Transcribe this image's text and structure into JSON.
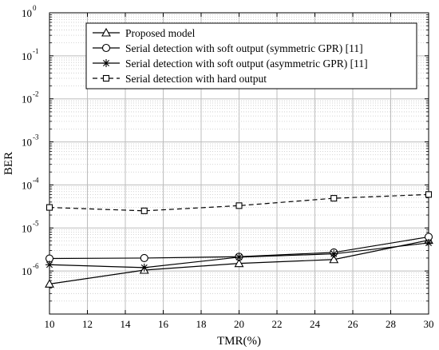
{
  "chart_data": {
    "type": "line",
    "xlabel": "TMR(%)",
    "ylabel": "BER",
    "xlim": [
      10,
      30
    ],
    "ylim": [
      1e-07,
      1
    ],
    "yscale": "log",
    "x_ticks": [
      10,
      12,
      14,
      16,
      18,
      20,
      22,
      24,
      26,
      28,
      30
    ],
    "x_tick_labels": [
      "10",
      "12",
      "14",
      "16",
      "18",
      "20",
      "22",
      "24",
      "26",
      "28",
      "30"
    ],
    "y_tick_exponents": [
      -6,
      -5,
      -4,
      -3,
      -2,
      -1,
      0
    ],
    "y_tick_base": "10",
    "grid": true,
    "legend_position": "top-right",
    "series": [
      {
        "name": "Proposed model",
        "marker": "triangle",
        "line": "solid",
        "x": [
          10,
          15,
          20,
          25,
          30
        ],
        "y": [
          5e-07,
          1.05e-06,
          1.5e-06,
          1.85e-06,
          5.2e-06
        ]
      },
      {
        "name": "Serial detection with soft output (symmetric GPR) [11]",
        "marker": "circle",
        "line": "solid",
        "x": [
          10,
          15,
          20,
          25,
          30
        ],
        "y": [
          1.95e-06,
          2e-06,
          2.15e-06,
          2.7e-06,
          6.2e-06
        ]
      },
      {
        "name": "Serial detection with soft output (asymmetric GPR) [11]",
        "marker": "asterisk",
        "line": "solid",
        "x": [
          10,
          15,
          20,
          25,
          30
        ],
        "y": [
          1.4e-06,
          1.2e-06,
          2.1e-06,
          2.5e-06,
          4.5e-06
        ]
      },
      {
        "name": "Serial detection with hard output",
        "marker": "square",
        "line": "dashed",
        "x": [
          10,
          15,
          20,
          25,
          30
        ],
        "y": [
          3e-05,
          2.5e-05,
          3.3e-05,
          4.9e-05,
          6e-05
        ]
      }
    ]
  }
}
